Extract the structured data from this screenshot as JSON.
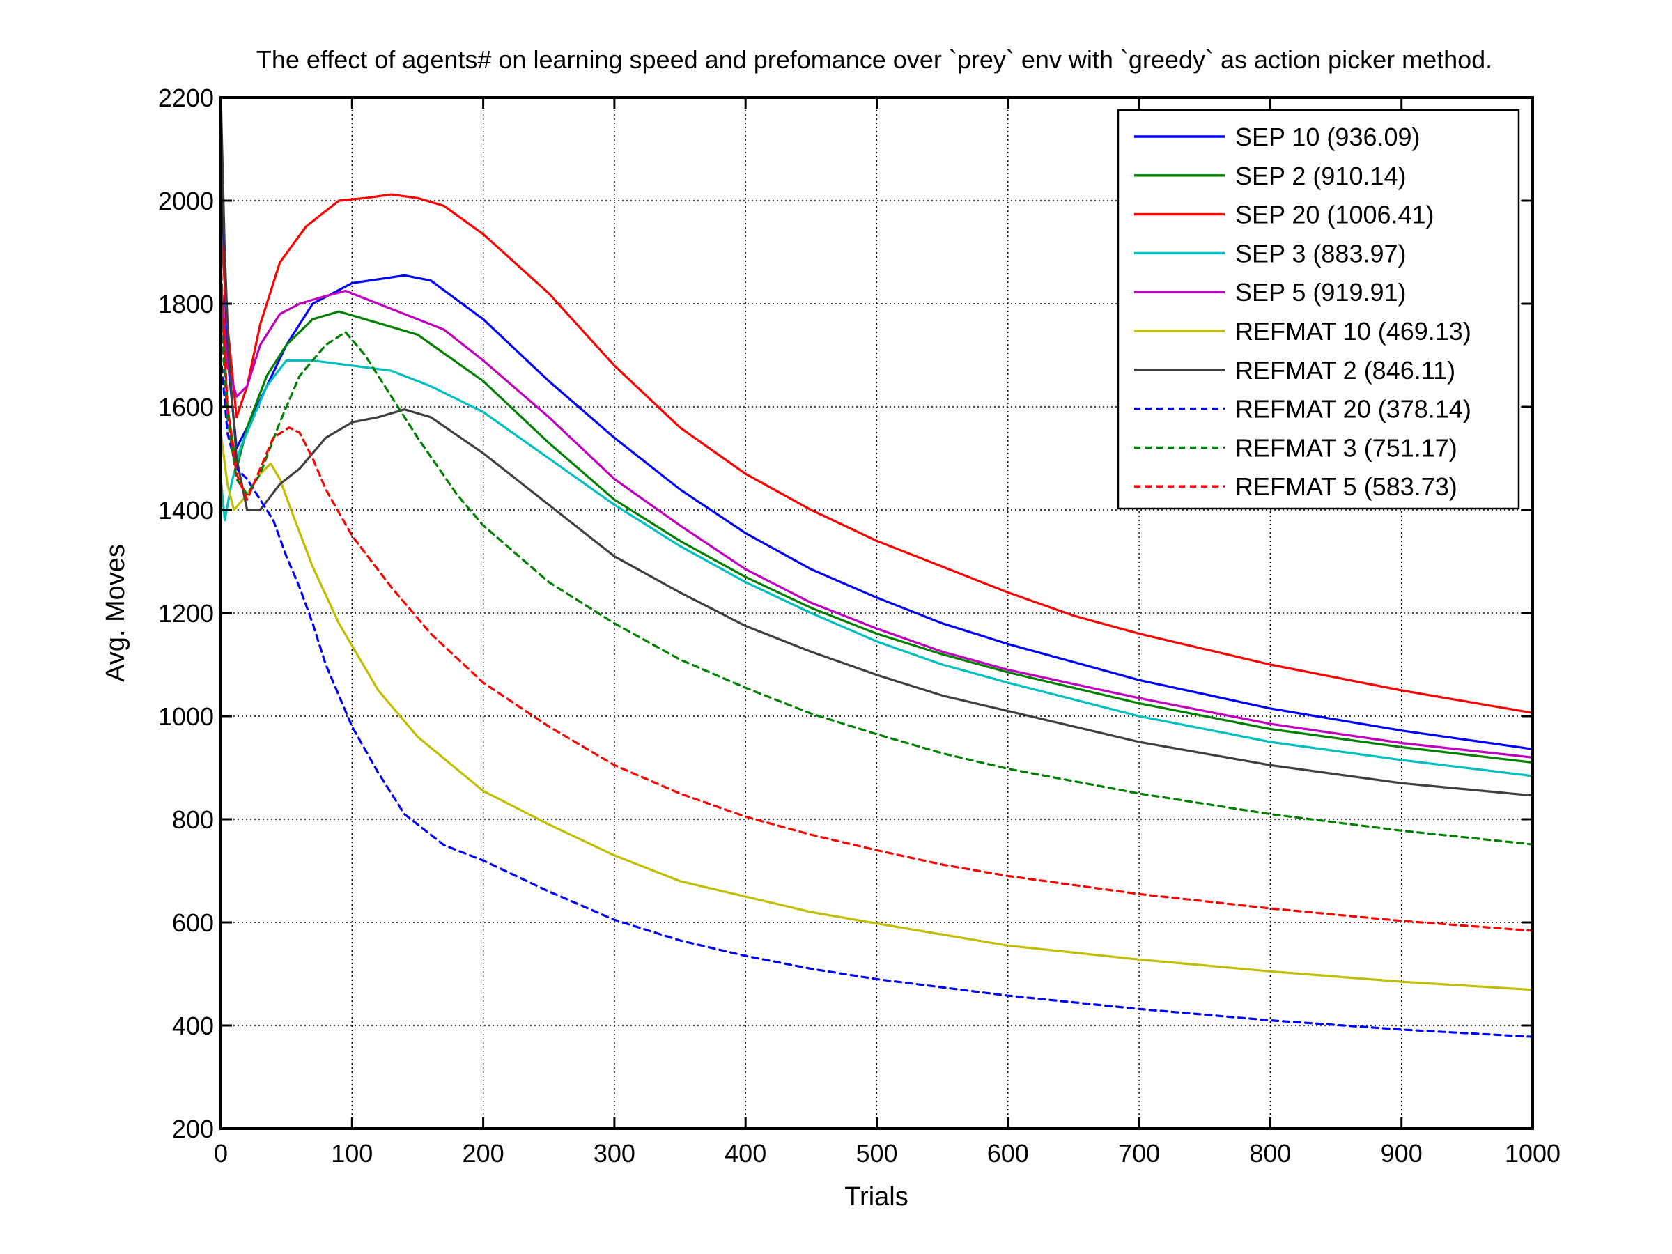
{
  "chart_data": {
    "type": "line",
    "title": "The effect of agents# on learning speed and prefomance over `prey` env with `greedy` as action picker method.",
    "xlabel": "Trials",
    "ylabel": "Avg. Moves",
    "xlim": [
      0,
      1000
    ],
    "ylim": [
      200,
      2200
    ],
    "xticks": [
      0,
      100,
      200,
      300,
      400,
      500,
      600,
      700,
      800,
      900,
      1000
    ],
    "yticks": [
      200,
      400,
      600,
      800,
      1000,
      1200,
      1400,
      1600,
      1800,
      2000,
      2200
    ],
    "grid": true,
    "legend_position": "top-right",
    "series": [
      {
        "name": "SEP 10 (936.09)",
        "color": "#0000ff",
        "style": "solid",
        "points": [
          [
            0,
            2050
          ],
          [
            5,
            1700
          ],
          [
            12,
            1520
          ],
          [
            20,
            1560
          ],
          [
            35,
            1640
          ],
          [
            50,
            1720
          ],
          [
            70,
            1800
          ],
          [
            100,
            1840
          ],
          [
            140,
            1855
          ],
          [
            160,
            1845
          ],
          [
            200,
            1770
          ],
          [
            250,
            1650
          ],
          [
            300,
            1540
          ],
          [
            350,
            1440
          ],
          [
            400,
            1355
          ],
          [
            450,
            1285
          ],
          [
            500,
            1230
          ],
          [
            550,
            1180
          ],
          [
            600,
            1140
          ],
          [
            700,
            1070
          ],
          [
            800,
            1015
          ],
          [
            900,
            972
          ],
          [
            1000,
            936.09
          ]
        ]
      },
      {
        "name": "SEP 2 (910.14)",
        "color": "#008000",
        "style": "solid",
        "points": [
          [
            0,
            1850
          ],
          [
            5,
            1600
          ],
          [
            12,
            1480
          ],
          [
            20,
            1560
          ],
          [
            35,
            1660
          ],
          [
            50,
            1720
          ],
          [
            70,
            1770
          ],
          [
            90,
            1785
          ],
          [
            110,
            1770
          ],
          [
            150,
            1740
          ],
          [
            200,
            1650
          ],
          [
            250,
            1530
          ],
          [
            300,
            1420
          ],
          [
            350,
            1340
          ],
          [
            400,
            1270
          ],
          [
            450,
            1210
          ],
          [
            500,
            1160
          ],
          [
            550,
            1120
          ],
          [
            600,
            1085
          ],
          [
            700,
            1025
          ],
          [
            800,
            975
          ],
          [
            900,
            940
          ],
          [
            1000,
            910.14
          ]
        ]
      },
      {
        "name": "SEP 20 (1006.41)",
        "color": "#ff0000",
        "style": "solid",
        "points": [
          [
            0,
            1950
          ],
          [
            5,
            1760
          ],
          [
            12,
            1580
          ],
          [
            20,
            1640
          ],
          [
            30,
            1760
          ],
          [
            45,
            1880
          ],
          [
            65,
            1950
          ],
          [
            90,
            2000
          ],
          [
            110,
            2005
          ],
          [
            130,
            2012
          ],
          [
            150,
            2005
          ],
          [
            170,
            1990
          ],
          [
            200,
            1935
          ],
          [
            250,
            1820
          ],
          [
            300,
            1680
          ],
          [
            350,
            1560
          ],
          [
            400,
            1470
          ],
          [
            450,
            1400
          ],
          [
            500,
            1340
          ],
          [
            550,
            1290
          ],
          [
            600,
            1240
          ],
          [
            650,
            1195
          ],
          [
            700,
            1160
          ],
          [
            800,
            1100
          ],
          [
            900,
            1050
          ],
          [
            1000,
            1006.41
          ]
        ]
      },
      {
        "name": "SEP 3 (883.97)",
        "color": "#00bfbf",
        "style": "solid",
        "points": [
          [
            0,
            1460
          ],
          [
            3,
            1380
          ],
          [
            8,
            1450
          ],
          [
            15,
            1520
          ],
          [
            25,
            1580
          ],
          [
            35,
            1640
          ],
          [
            50,
            1690
          ],
          [
            70,
            1690
          ],
          [
            100,
            1680
          ],
          [
            130,
            1670
          ],
          [
            160,
            1640
          ],
          [
            200,
            1590
          ],
          [
            250,
            1500
          ],
          [
            300,
            1410
          ],
          [
            350,
            1330
          ],
          [
            400,
            1260
          ],
          [
            450,
            1200
          ],
          [
            500,
            1145
          ],
          [
            550,
            1100
          ],
          [
            600,
            1065
          ],
          [
            700,
            1000
          ],
          [
            800,
            950
          ],
          [
            900,
            915
          ],
          [
            1000,
            883.97
          ]
        ]
      },
      {
        "name": "SEP 5 (919.91)",
        "color": "#bf00bf",
        "style": "solid",
        "points": [
          [
            0,
            1850
          ],
          [
            5,
            1680
          ],
          [
            12,
            1620
          ],
          [
            20,
            1640
          ],
          [
            30,
            1720
          ],
          [
            45,
            1780
          ],
          [
            60,
            1800
          ],
          [
            80,
            1815
          ],
          [
            95,
            1825
          ],
          [
            110,
            1810
          ],
          [
            140,
            1780
          ],
          [
            170,
            1750
          ],
          [
            200,
            1690
          ],
          [
            250,
            1580
          ],
          [
            300,
            1460
          ],
          [
            350,
            1370
          ],
          [
            400,
            1285
          ],
          [
            450,
            1220
          ],
          [
            500,
            1170
          ],
          [
            550,
            1125
          ],
          [
            600,
            1090
          ],
          [
            700,
            1035
          ],
          [
            800,
            985
          ],
          [
            900,
            948
          ],
          [
            1000,
            919.91
          ]
        ]
      },
      {
        "name": "REFMAT 10 (469.13)",
        "color": "#bfbf00",
        "style": "solid",
        "points": [
          [
            0,
            1550
          ],
          [
            5,
            1450
          ],
          [
            10,
            1400
          ],
          [
            20,
            1430
          ],
          [
            30,
            1470
          ],
          [
            38,
            1490
          ],
          [
            45,
            1460
          ],
          [
            55,
            1390
          ],
          [
            70,
            1290
          ],
          [
            90,
            1180
          ],
          [
            120,
            1050
          ],
          [
            150,
            960
          ],
          [
            200,
            855
          ],
          [
            250,
            790
          ],
          [
            300,
            730
          ],
          [
            350,
            680
          ],
          [
            400,
            650
          ],
          [
            450,
            620
          ],
          [
            500,
            598
          ],
          [
            600,
            555
          ],
          [
            700,
            528
          ],
          [
            800,
            505
          ],
          [
            900,
            485
          ],
          [
            1000,
            469.13
          ]
        ]
      },
      {
        "name": "REFMAT 2 (846.11)",
        "color": "#404040",
        "style": "solid",
        "points": [
          [
            0,
            2200
          ],
          [
            3,
            1900
          ],
          [
            6,
            1700
          ],
          [
            12,
            1500
          ],
          [
            20,
            1400
          ],
          [
            30,
            1400
          ],
          [
            45,
            1450
          ],
          [
            60,
            1480
          ],
          [
            80,
            1540
          ],
          [
            100,
            1570
          ],
          [
            120,
            1580
          ],
          [
            140,
            1595
          ],
          [
            160,
            1580
          ],
          [
            200,
            1510
          ],
          [
            250,
            1410
          ],
          [
            300,
            1310
          ],
          [
            350,
            1240
          ],
          [
            400,
            1175
          ],
          [
            450,
            1125
          ],
          [
            500,
            1080
          ],
          [
            550,
            1040
          ],
          [
            600,
            1010
          ],
          [
            700,
            950
          ],
          [
            800,
            905
          ],
          [
            900,
            870
          ],
          [
            1000,
            846.11
          ]
        ]
      },
      {
        "name": "REFMAT 20 (378.14)",
        "color": "#0000ff",
        "style": "dashed",
        "points": [
          [
            0,
            1700
          ],
          [
            5,
            1550
          ],
          [
            12,
            1480
          ],
          [
            20,
            1460
          ],
          [
            30,
            1420
          ],
          [
            40,
            1380
          ],
          [
            50,
            1310
          ],
          [
            60,
            1250
          ],
          [
            70,
            1180
          ],
          [
            80,
            1100
          ],
          [
            100,
            980
          ],
          [
            120,
            890
          ],
          [
            140,
            810
          ],
          [
            170,
            750
          ],
          [
            200,
            720
          ],
          [
            250,
            660
          ],
          [
            300,
            605
          ],
          [
            350,
            565
          ],
          [
            400,
            535
          ],
          [
            450,
            510
          ],
          [
            500,
            490
          ],
          [
            600,
            458
          ],
          [
            700,
            432
          ],
          [
            800,
            410
          ],
          [
            900,
            392
          ],
          [
            1000,
            378.14
          ]
        ]
      },
      {
        "name": "REFMAT 3 (751.17)",
        "color": "#008000",
        "style": "dashed",
        "points": [
          [
            0,
            1780
          ],
          [
            5,
            1580
          ],
          [
            12,
            1460
          ],
          [
            20,
            1430
          ],
          [
            30,
            1470
          ],
          [
            45,
            1570
          ],
          [
            60,
            1660
          ],
          [
            80,
            1720
          ],
          [
            95,
            1745
          ],
          [
            110,
            1700
          ],
          [
            130,
            1620
          ],
          [
            150,
            1540
          ],
          [
            180,
            1430
          ],
          [
            200,
            1370
          ],
          [
            250,
            1260
          ],
          [
            300,
            1180
          ],
          [
            350,
            1110
          ],
          [
            400,
            1055
          ],
          [
            450,
            1005
          ],
          [
            500,
            965
          ],
          [
            550,
            928
          ],
          [
            600,
            898
          ],
          [
            700,
            850
          ],
          [
            800,
            810
          ],
          [
            900,
            778
          ],
          [
            1000,
            751.17
          ]
        ]
      },
      {
        "name": "REFMAT 5 (583.73)",
        "color": "#ff0000",
        "style": "dashed",
        "points": [
          [
            0,
            1880
          ],
          [
            5,
            1600
          ],
          [
            12,
            1470
          ],
          [
            20,
            1420
          ],
          [
            30,
            1480
          ],
          [
            40,
            1540
          ],
          [
            52,
            1560
          ],
          [
            60,
            1550
          ],
          [
            70,
            1500
          ],
          [
            80,
            1440
          ],
          [
            100,
            1350
          ],
          [
            130,
            1250
          ],
          [
            160,
            1160
          ],
          [
            200,
            1065
          ],
          [
            250,
            980
          ],
          [
            300,
            905
          ],
          [
            350,
            850
          ],
          [
            400,
            805
          ],
          [
            450,
            770
          ],
          [
            500,
            740
          ],
          [
            550,
            712
          ],
          [
            600,
            690
          ],
          [
            700,
            655
          ],
          [
            800,
            627
          ],
          [
            900,
            603
          ],
          [
            1000,
            583.73
          ]
        ]
      }
    ]
  }
}
